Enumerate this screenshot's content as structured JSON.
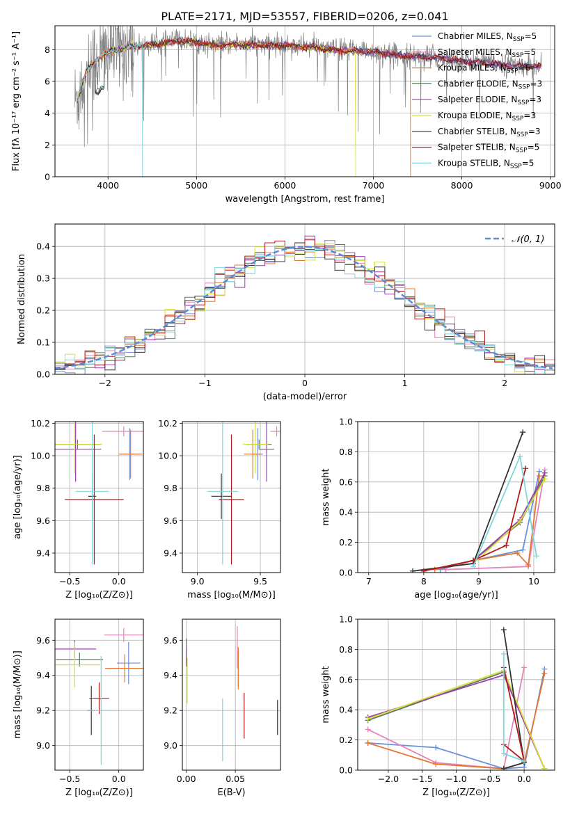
{
  "figure_title": "PLATE=2171, MJD=53557, FIBERID=0206, z=0.041",
  "series_colors": {
    "Chabrier MILES": "#6a8fdc",
    "Salpeter MILES": "#e385b9",
    "Kroupa MILES": "#e5762f",
    "Chabrier ELODIE": "#5c7a5c",
    "Salpeter ELODIE": "#9b3fb0",
    "Kroupa ELODIE": "#d8df3a",
    "Chabrier STELIB": "#333333",
    "Salpeter STELIB": "#b31b1b",
    "Kroupa STELIB": "#7fd6dc"
  },
  "chart_data": [
    {
      "id": "spectrum",
      "type": "line",
      "xlabel": "wavelength [Angstrom, rest frame]",
      "ylabel": "Flux [fλ 10⁻¹⁷ erg cm⁻² s⁻¹ A⁻¹]",
      "xlim": [
        3400,
        9050
      ],
      "ylim": [
        0,
        9.5
      ],
      "xticks": [
        "4000",
        "5000",
        "6000",
        "7000",
        "8000",
        "9000"
      ],
      "yticks": [
        "0",
        "2",
        "4",
        "6",
        "8"
      ],
      "legend_position": "upper right",
      "legend": [
        {
          "label": "Chabrier MILES, N",
          "sub": "SSP",
          "tail": "=5"
        },
        {
          "label": "Salpeter MILES, N",
          "sub": "SSP",
          "tail": "=5"
        },
        {
          "label": "Kroupa MILES, N",
          "sub": "SSP",
          "tail": "=6"
        },
        {
          "label": "Chabrier ELODIE, N",
          "sub": "SSP",
          "tail": "=3"
        },
        {
          "label": "Salpeter ELODIE, N",
          "sub": "SSP",
          "tail": "=3"
        },
        {
          "label": "Kroupa ELODIE, N",
          "sub": "SSP",
          "tail": "=3"
        },
        {
          "label": "Chabrier STELIB, N",
          "sub": "SSP",
          "tail": "=3"
        },
        {
          "label": "Salpeter STELIB, N",
          "sub": "SSP",
          "tail": "=5"
        },
        {
          "label": "Kroupa STELIB, N",
          "sub": "SSP",
          "tail": "=5"
        }
      ],
      "data_trend": {
        "x": [
          3650,
          3750,
          3850,
          4000,
          4200,
          4400,
          4600,
          4800,
          5000,
          5200,
          5500,
          5800,
          6000,
          6300,
          6600,
          7000,
          7300,
          7500,
          7800,
          8000,
          8300,
          8600,
          8800
        ],
        "y": [
          4.8,
          6.6,
          7.3,
          7.9,
          8.2,
          8.3,
          8.4,
          8.6,
          8.5,
          8.3,
          8.4,
          8.3,
          8.3,
          8.2,
          8.0,
          7.9,
          7.7,
          7.6,
          7.5,
          7.3,
          7.2,
          7.0,
          7.0
        ]
      },
      "model_cutoffs": {
        "Kroupa MILES": 7420,
        "Kroupa ELODIE": 6800,
        "Kroupa STELIB": 4390
      }
    },
    {
      "id": "residual-histogram",
      "type": "step",
      "xlabel": "(data-model)/error",
      "ylabel": "Normed distribution",
      "xlim": [
        -2.5,
        2.5
      ],
      "ylim": [
        0,
        0.47
      ],
      "xticks": [
        "−2",
        "−1",
        "0",
        "1",
        "2"
      ],
      "yticks": [
        "0.0",
        "0.1",
        "0.2",
        "0.3",
        "0.4"
      ],
      "bin_width": 0.1,
      "reference": {
        "label": "𝒩(0, 1)",
        "mean": 0,
        "sigma": 1,
        "style": "dashed",
        "color": "#5b8bd6"
      },
      "legend_position": "upper right",
      "grid": true
    },
    {
      "id": "age-vs-Z",
      "type": "errorbar",
      "xlabel": "Z [log₁₀(Z/Z⊙)]",
      "ylabel": "age  [log₁₀(age/yr)]",
      "xlim": [
        -0.65,
        0.25
      ],
      "ylim": [
        9.28,
        10.21
      ],
      "xticks": [
        "−0.5",
        "0.0"
      ],
      "yticks": [
        "9.4",
        "9.6",
        "9.8",
        "10.0",
        "10.2"
      ],
      "points": [
        {
          "series": "Chabrier MILES",
          "x": 0.11,
          "y": 10.01,
          "xerr": 0.1,
          "yerr": 0.16
        },
        {
          "series": "Salpeter MILES",
          "x": 0.05,
          "y": 10.15,
          "xerr": 0.22,
          "yerr": 0.03
        },
        {
          "series": "Kroupa MILES",
          "x": 0.12,
          "y": 10.01,
          "xerr": 0.12,
          "yerr": 0.15
        },
        {
          "series": "Chabrier ELODIE",
          "x": -0.42,
          "y": 10.07,
          "xerr": 0.24,
          "yerr": 0.03
        },
        {
          "series": "Salpeter ELODIE",
          "x": -0.44,
          "y": 10.04,
          "xerr": 0.26,
          "yerr": 0.2
        },
        {
          "series": "Kroupa ELODIE",
          "x": -0.45,
          "y": 10.07,
          "xerr": 0.28,
          "yerr": 0.18
        },
        {
          "series": "Chabrier STELIB",
          "x": -0.27,
          "y": 9.75,
          "xerr": 0.04,
          "yerr": 0.14
        },
        {
          "series": "Salpeter STELIB",
          "x": -0.25,
          "y": 9.73,
          "xerr": 0.3,
          "yerr": 0.4
        },
        {
          "series": "Kroupa STELIB",
          "x": -0.27,
          "y": 9.78,
          "xerr": 0.17,
          "yerr": 0.45
        }
      ]
    },
    {
      "id": "age-vs-mass",
      "type": "errorbar",
      "xlabel": "mass [log₁₀(M/M⊙)]",
      "ylabel": "",
      "xlim": [
        8.88,
        9.66
      ],
      "ylim": [
        9.28,
        10.21
      ],
      "xticks": [
        "9.0",
        "9.5"
      ],
      "yticks": [
        "9.4",
        "9.6",
        "9.8",
        "10.0",
        "10.2"
      ],
      "points": [
        {
          "series": "Chabrier MILES",
          "x": 9.48,
          "y": 10.01,
          "xerr": 0.04,
          "yerr": 0.16
        },
        {
          "series": "Salpeter MILES",
          "x": 9.63,
          "y": 10.15,
          "xerr": 0.05,
          "yerr": 0.03
        },
        {
          "series": "Kroupa MILES",
          "x": 9.44,
          "y": 10.01,
          "xerr": 0.07,
          "yerr": 0.15
        },
        {
          "series": "Chabrier ELODIE",
          "x": 9.49,
          "y": 10.07,
          "xerr": 0.1,
          "yerr": 0.03
        },
        {
          "series": "Salpeter ELODIE",
          "x": 9.55,
          "y": 10.04,
          "xerr": 0.06,
          "yerr": 0.2
        },
        {
          "series": "Kroupa ELODIE",
          "x": 9.46,
          "y": 10.07,
          "xerr": 0.1,
          "yerr": 0.18
        },
        {
          "series": "Chabrier STELIB",
          "x": 9.19,
          "y": 9.75,
          "xerr": 0.08,
          "yerr": 0.14
        },
        {
          "series": "Salpeter STELIB",
          "x": 9.27,
          "y": 9.73,
          "xerr": 0.1,
          "yerr": 0.4
        },
        {
          "series": "Kroupa STELIB",
          "x": 9.2,
          "y": 9.78,
          "xerr": 0.12,
          "yerr": 0.45
        }
      ]
    },
    {
      "id": "weight-vs-age",
      "type": "line",
      "xlabel": "age  [log₁₀(age/yr)]",
      "ylabel": "mass weight",
      "xlim": [
        6.8,
        10.38
      ],
      "ylim": [
        0,
        1
      ],
      "xticks": [
        "7",
        "8",
        "9",
        "10"
      ],
      "yticks": [
        "0.0",
        "0.2",
        "0.4",
        "0.6",
        "0.8",
        "1.0"
      ],
      "grid": true,
      "series": [
        {
          "name": "Chabrier MILES",
          "x": [
            8.3,
            8.9,
            9.8,
            10.1
          ],
          "y": [
            0.02,
            0.08,
            0.15,
            0.67
          ]
        },
        {
          "name": "Salpeter MILES",
          "x": [
            8.4,
            9.9,
            10.2
          ],
          "y": [
            0.02,
            0.04,
            0.68
          ]
        },
        {
          "name": "Kroupa MILES",
          "x": [
            8.2,
            8.9,
            9.7,
            9.9,
            10.1
          ],
          "y": [
            0.02,
            0.08,
            0.13,
            0.05,
            0.64
          ]
        },
        {
          "name": "Chabrier ELODIE",
          "x": [
            8.9,
            9.75,
            10.2
          ],
          "y": [
            0.08,
            0.33,
            0.64
          ]
        },
        {
          "name": "Salpeter ELODIE",
          "x": [
            8.9,
            9.75,
            10.2
          ],
          "y": [
            0.08,
            0.35,
            0.66
          ]
        },
        {
          "name": "Kroupa ELODIE",
          "x": [
            8.9,
            9.75,
            10.2
          ],
          "y": [
            0.06,
            0.34,
            0.62
          ]
        },
        {
          "name": "Chabrier STELIB",
          "x": [
            7.8,
            8.9,
            9.8
          ],
          "y": [
            0.01,
            0.06,
            0.93
          ]
        },
        {
          "name": "Salpeter STELIB",
          "x": [
            8.0,
            8.9,
            9.5,
            9.85
          ],
          "y": [
            0.01,
            0.08,
            0.18,
            0.69
          ]
        },
        {
          "name": "Kroupa STELIB",
          "x": [
            8.9,
            9.75,
            10.05
          ],
          "y": [
            0.04,
            0.77,
            0.11
          ]
        }
      ]
    },
    {
      "id": "mass-vs-Z",
      "type": "errorbar",
      "xlabel": "Z [log₁₀(Z/Z⊙)]",
      "ylabel": "mass [log₁₀(M/M⊙)]",
      "xlim": [
        -0.65,
        0.25
      ],
      "ylim": [
        8.86,
        9.72
      ],
      "xticks": [
        "−0.5",
        "0.0"
      ],
      "yticks": [
        "9.0",
        "9.2",
        "9.4",
        "9.6"
      ],
      "points": [
        {
          "series": "Chabrier MILES",
          "x": 0.1,
          "y": 9.47,
          "xerr": 0.12,
          "yerr": 0.12
        },
        {
          "series": "Salpeter MILES",
          "x": 0.05,
          "y": 9.63,
          "xerr": 0.2,
          "yerr": 0.04
        },
        {
          "series": "Kroupa MILES",
          "x": 0.06,
          "y": 9.44,
          "xerr": 0.2,
          "yerr": 0.08
        },
        {
          "series": "Chabrier ELODIE",
          "x": -0.4,
          "y": 9.49,
          "xerr": 0.24,
          "yerr": 0.04
        },
        {
          "series": "Salpeter ELODIE",
          "x": -0.45,
          "y": 9.55,
          "xerr": 0.22,
          "yerr": 0.05
        },
        {
          "series": "Kroupa ELODIE",
          "x": -0.45,
          "y": 9.46,
          "xerr": 0.26,
          "yerr": 0.13
        },
        {
          "series": "Chabrier STELIB",
          "x": -0.28,
          "y": 9.2,
          "xerr": 0.04,
          "yerr": 0.14
        },
        {
          "series": "Salpeter STELIB",
          "x": -0.2,
          "y": 9.27,
          "xerr": 0.1,
          "yerr": 0.09
        },
        {
          "series": "Kroupa STELIB",
          "x": -0.18,
          "y": 9.2,
          "xerr": 0.15,
          "yerr": 0.31
        }
      ]
    },
    {
      "id": "mass-vs-EBV",
      "type": "errorbar",
      "xlabel": "E(B-V)",
      "ylabel": "",
      "xlim": [
        -0.004,
        0.096
      ],
      "ylim": [
        8.86,
        9.72
      ],
      "xticks": [
        "0.00",
        "0.05"
      ],
      "yticks": [
        "9.0",
        "9.2",
        "9.4",
        "9.6"
      ],
      "points": [
        {
          "series": "Chabrier MILES",
          "x": 0.053,
          "y": 9.44,
          "xerr": 0.0,
          "yerr": 0.1
        },
        {
          "series": "Salpeter MILES",
          "x": 0.052,
          "y": 9.56,
          "xerr": 0.0,
          "yerr": 0.12
        },
        {
          "series": "Kroupa MILES",
          "x": 0.053,
          "y": 9.44,
          "xerr": 0.0,
          "yerr": 0.12
        },
        {
          "series": "Chabrier ELODIE",
          "x": 0.0,
          "y": 9.5,
          "xerr": 0.0,
          "yerr": 0.05
        },
        {
          "series": "Salpeter ELODIE",
          "x": 0.0,
          "y": 9.54,
          "xerr": 0.0,
          "yerr": 0.07
        },
        {
          "series": "Kroupa ELODIE",
          "x": 0.001,
          "y": 9.37,
          "xerr": 0.0,
          "yerr": 0.13
        },
        {
          "series": "Chabrier STELIB",
          "x": 0.093,
          "y": 9.16,
          "xerr": 0.0,
          "yerr": 0.1
        },
        {
          "series": "Salpeter STELIB",
          "x": 0.059,
          "y": 9.17,
          "xerr": 0.0,
          "yerr": 0.13
        },
        {
          "series": "Kroupa STELIB",
          "x": 0.037,
          "y": 9.09,
          "xerr": 0.0,
          "yerr": 0.18
        }
      ]
    },
    {
      "id": "weight-vs-Z",
      "type": "line",
      "xlabel": "Z [log₁₀(Z/Z⊙)]",
      "ylabel": "mass weight",
      "xlim": [
        -2.45,
        0.45
      ],
      "ylim": [
        0,
        1
      ],
      "xticks": [
        "−2.0",
        "−1.5",
        "−1.0",
        "−0.5",
        "0.0"
      ],
      "yticks": [
        "0.0",
        "0.2",
        "0.4",
        "0.6",
        "0.8",
        "1.0"
      ],
      "grid": true,
      "series": [
        {
          "name": "Chabrier MILES",
          "x": [
            -2.3,
            -1.3,
            -0.3,
            0.0,
            0.3
          ],
          "y": [
            0.18,
            0.15,
            0.01,
            0.02,
            0.67
          ]
        },
        {
          "name": "Salpeter MILES",
          "x": [
            -2.3,
            -1.3,
            -0.3,
            0.0
          ],
          "y": [
            0.27,
            0.05,
            0.01,
            0.68
          ]
        },
        {
          "name": "Kroupa MILES",
          "x": [
            -2.3,
            -1.3,
            -0.3,
            0.0,
            0.3
          ],
          "y": [
            0.18,
            0.04,
            0.01,
            0.05,
            0.64
          ]
        },
        {
          "name": "Chabrier ELODIE",
          "x": [
            -2.3,
            -0.3,
            0.3
          ],
          "y": [
            0.33,
            0.65,
            0.01
          ]
        },
        {
          "name": "Salpeter ELODIE",
          "x": [
            -2.3,
            -0.3,
            0.3
          ],
          "y": [
            0.35,
            0.63,
            0.01
          ]
        },
        {
          "name": "Kroupa ELODIE",
          "x": [
            -2.3,
            -0.3,
            0.3
          ],
          "y": [
            0.34,
            0.66,
            0.01
          ]
        },
        {
          "name": "Chabrier STELIB",
          "x": [
            -0.3,
            0.0,
            -0.3
          ],
          "y": [
            0.93,
            0.05,
            0.01
          ]
        },
        {
          "name": "Salpeter STELIB",
          "x": [
            -0.3,
            0.0,
            -0.3
          ],
          "y": [
            0.68,
            0.06,
            0.17
          ]
        },
        {
          "name": "Kroupa STELIB",
          "x": [
            -0.3,
            -0.3,
            0.0
          ],
          "y": [
            0.77,
            0.11,
            0.06
          ]
        }
      ]
    }
  ]
}
